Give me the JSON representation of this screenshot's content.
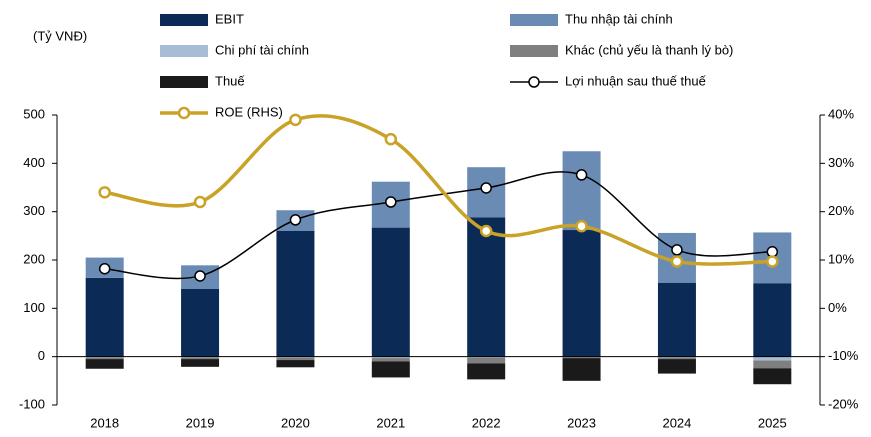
{
  "chart_data": {
    "type": "bar",
    "unit_label": "(Tỷ VNĐ)",
    "categories": [
      "2018",
      "2019",
      "2020",
      "2021",
      "2022",
      "2023",
      "2024",
      "2025"
    ],
    "series": [
      {
        "name": "EBIT",
        "type": "bar",
        "color": "#0b2a55",
        "values": [
          163,
          140,
          260,
          267,
          288,
          262,
          153,
          152
        ]
      },
      {
        "name": "Thu nhập tài chính",
        "type": "bar",
        "color": "#6a8bb3",
        "values": [
          42,
          49,
          43,
          95,
          104,
          163,
          103,
          105
        ]
      },
      {
        "name": "Chi phí tài chính",
        "type": "bar",
        "color": "#a9bcd6",
        "values": [
          -2,
          -2,
          -2,
          -3,
          -2,
          -1,
          -2,
          -8
        ]
      },
      {
        "name": "Khác (chủ yếu là thanh lý bò)",
        "type": "bar",
        "color": "#7f7f7f",
        "values": [
          -3,
          -3,
          -5,
          -7,
          -12,
          -2,
          -3,
          -16
        ]
      },
      {
        "name": "Thuế",
        "type": "bar",
        "color": "#1a1a1a",
        "values": [
          -20,
          -16,
          -15,
          -33,
          -33,
          -47,
          -30,
          -33
        ]
      },
      {
        "name": "Lợi nhuận sau thuế thuế",
        "type": "line",
        "color": "#000000",
        "values": [
          182,
          167,
          283,
          320,
          349,
          376,
          221,
          217
        ]
      },
      {
        "name": "ROE (RHS)",
        "type": "line",
        "axis": "y2",
        "color": "#c9a227",
        "values": [
          24,
          22,
          39,
          35,
          16,
          17,
          9.7,
          9.7
        ]
      }
    ],
    "ylim": [
      -100,
      500
    ],
    "yticks": [
      -100,
      0,
      100,
      200,
      300,
      400,
      500
    ],
    "y2lim": [
      -20,
      40
    ],
    "y2ticks": [
      {
        "value": -20,
        "label": "-20%"
      },
      {
        "value": -10,
        "label": "-10%"
      },
      {
        "value": 0,
        "label": "0%"
      },
      {
        "value": 10,
        "label": "10%"
      },
      {
        "value": 20,
        "label": "20%"
      },
      {
        "value": 30,
        "label": "30%"
      },
      {
        "value": 40,
        "label": "40%"
      }
    ]
  }
}
